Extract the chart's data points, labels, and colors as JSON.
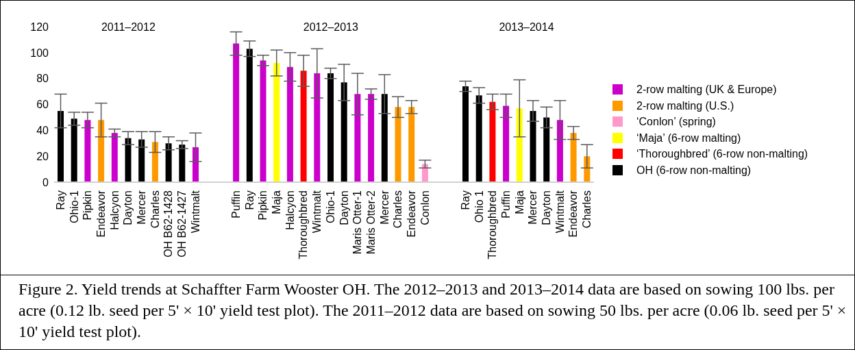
{
  "chart_data": {
    "type": "bar",
    "stacked": true,
    "legend": "right",
    "grid": false,
    "categories": [
      "Ray",
      "Ohio-1",
      "Pipkin",
      "Endeavor",
      "Halcyon",
      "Dayton",
      "Mercer",
      "Charles",
      "OH B62-1428",
      "OH B62-1427",
      "Wintmalt",
      null,
      null,
      "Puffin",
      "Ray",
      "Pipkin",
      "Maja",
      "Halcyon",
      "Thoroughbred",
      "Wintmalt",
      "Ohio-1",
      "Dayton",
      "Maris Otter-1",
      "Maris Otter-2",
      "Mercer",
      "Charles",
      "Endeavor",
      "Conlon",
      null,
      null,
      "Ray",
      "Ohio 1",
      "Thoroughbred",
      "Puffin",
      "Maja",
      "Mercer",
      "Dayton",
      "Wintmalt",
      "Endeavor",
      "Charles"
    ],
    "ylim": [
      0,
      120
    ],
    "yticks": [
      0,
      20,
      40,
      60,
      80,
      100,
      120
    ],
    "series": [
      {
        "name": "2-row malting (UK & Europe)",
        "color": "#cc00cc",
        "values": [
          null,
          null,
          48,
          null,
          38,
          null,
          null,
          null,
          null,
          null,
          27,
          null,
          null,
          107,
          null,
          94,
          null,
          89,
          null,
          84,
          null,
          null,
          68,
          68,
          null,
          null,
          null,
          null,
          null,
          null,
          null,
          null,
          null,
          59,
          null,
          null,
          null,
          48,
          null,
          null
        ],
        "errors": [
          null,
          null,
          6,
          null,
          3,
          null,
          null,
          null,
          null,
          null,
          11,
          null,
          null,
          9,
          null,
          4,
          null,
          11,
          null,
          19,
          null,
          null,
          16,
          4,
          null,
          null,
          null,
          null,
          null,
          null,
          null,
          null,
          null,
          9,
          null,
          null,
          null,
          15,
          null,
          null
        ]
      },
      {
        "name": "2-row malting (U.S.)",
        "color": "#ff9900",
        "values": [
          null,
          null,
          null,
          48,
          null,
          null,
          null,
          31,
          null,
          null,
          null,
          null,
          null,
          null,
          null,
          null,
          null,
          null,
          null,
          null,
          null,
          null,
          null,
          null,
          null,
          58,
          58,
          null,
          null,
          null,
          null,
          null,
          null,
          null,
          null,
          null,
          null,
          null,
          38,
          20
        ],
        "errors": [
          null,
          null,
          null,
          13,
          null,
          null,
          null,
          8,
          null,
          null,
          null,
          null,
          null,
          null,
          null,
          null,
          null,
          null,
          null,
          null,
          null,
          null,
          null,
          null,
          null,
          8,
          5,
          null,
          null,
          null,
          null,
          null,
          null,
          null,
          null,
          null,
          null,
          null,
          5,
          9
        ]
      },
      {
        "name": "‘Conlon’ (spring)",
        "color": "#ff99cc",
        "values": [
          null,
          null,
          null,
          null,
          null,
          null,
          null,
          null,
          null,
          null,
          null,
          null,
          null,
          null,
          null,
          null,
          null,
          null,
          null,
          null,
          null,
          null,
          null,
          null,
          null,
          null,
          null,
          14,
          null,
          null,
          null,
          null,
          null,
          null,
          null,
          null,
          null,
          null,
          null,
          null
        ],
        "errors": [
          null,
          null,
          null,
          null,
          null,
          null,
          null,
          null,
          null,
          null,
          null,
          null,
          null,
          null,
          null,
          null,
          null,
          null,
          null,
          null,
          null,
          null,
          null,
          null,
          null,
          null,
          null,
          3,
          null,
          null,
          null,
          null,
          null,
          null,
          null,
          null,
          null,
          null,
          null,
          null
        ]
      },
      {
        "name": "‘Maja’ (6-row malting)",
        "color": "#ffff00",
        "values": [
          null,
          null,
          null,
          null,
          null,
          null,
          null,
          null,
          null,
          null,
          null,
          null,
          null,
          null,
          null,
          null,
          92,
          null,
          null,
          null,
          null,
          null,
          null,
          null,
          null,
          null,
          null,
          null,
          null,
          null,
          null,
          null,
          null,
          null,
          57,
          null,
          null,
          null,
          null,
          null
        ],
        "errors": [
          null,
          null,
          null,
          null,
          null,
          null,
          null,
          null,
          null,
          null,
          null,
          null,
          null,
          null,
          null,
          null,
          10,
          null,
          null,
          null,
          null,
          null,
          null,
          null,
          null,
          null,
          null,
          null,
          null,
          null,
          null,
          null,
          null,
          null,
          22,
          null,
          null,
          null,
          null,
          null
        ]
      },
      {
        "name": "‘Thoroughbred’ (6-row non-malting)",
        "color": "#ff0000",
        "values": [
          null,
          null,
          null,
          null,
          null,
          null,
          null,
          null,
          null,
          null,
          null,
          null,
          null,
          null,
          null,
          null,
          null,
          null,
          86,
          null,
          null,
          null,
          null,
          null,
          null,
          null,
          null,
          null,
          null,
          null,
          null,
          null,
          62,
          null,
          null,
          null,
          null,
          null,
          null,
          null
        ],
        "errors": [
          null,
          null,
          null,
          null,
          null,
          null,
          null,
          null,
          null,
          null,
          null,
          null,
          null,
          null,
          null,
          null,
          null,
          null,
          12,
          null,
          null,
          null,
          null,
          null,
          null,
          null,
          null,
          null,
          null,
          null,
          null,
          null,
          6,
          null,
          null,
          null,
          null,
          null,
          null,
          null
        ]
      },
      {
        "name": "OH (6-row non-malting)",
        "color": "#000000",
        "values": [
          55,
          49,
          null,
          null,
          null,
          34,
          33,
          null,
          30,
          29,
          null,
          null,
          null,
          null,
          103,
          null,
          null,
          null,
          null,
          null,
          84,
          77,
          null,
          null,
          68,
          null,
          null,
          null,
          null,
          null,
          74,
          67,
          null,
          null,
          null,
          55,
          50,
          null,
          null,
          null
        ],
        "errors": [
          13,
          5,
          null,
          null,
          null,
          5,
          6,
          null,
          5,
          3,
          null,
          null,
          null,
          null,
          6,
          null,
          null,
          null,
          null,
          null,
          4,
          14,
          null,
          null,
          15,
          null,
          null,
          null,
          null,
          null,
          4,
          6,
          null,
          null,
          null,
          8,
          8,
          null,
          null,
          null
        ]
      }
    ],
    "annotations": [
      "2011–2012",
      "2012–2013",
      "2013–2014",
      "Figure 2. Yield trends at Schaffter Farm Wooster OH. The 2012–2013 and 2013–2014 data are based on sowing 100 lbs. per acre (0.12 lb. seed per 5' × 10' yield test plot). The 2011–2012 data are based on sowing 50 lbs. per acre (0.06 lb. seed per 5' × 10' yield test plot)."
    ]
  }
}
